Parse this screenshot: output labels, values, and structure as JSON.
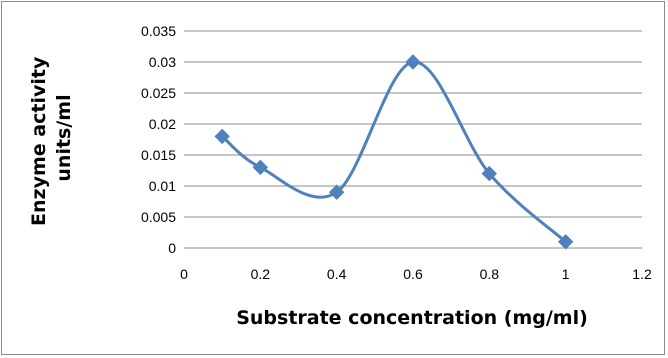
{
  "chart_data": {
    "type": "line",
    "smoothed": true,
    "marker": "diamond",
    "xlabel": "Substrate concentration (mg/ml)",
    "ylabel_lines": [
      "Enzyme activity",
      "units/ml"
    ],
    "xlim": [
      0,
      1.2
    ],
    "ylim": [
      0,
      0.035
    ],
    "xticks": [
      "0",
      "0.2",
      "0.4",
      "0.6",
      "0.8",
      "1",
      "1.2"
    ],
    "yticks": [
      "0",
      "0.005",
      "0.01",
      "0.015",
      "0.02",
      "0.025",
      "0.03",
      "0.035"
    ],
    "grid": "horizontal",
    "legend": "none",
    "series": [
      {
        "color": "#4f81bd",
        "x": [
          0.1,
          0.2,
          0.4,
          0.6,
          0.8,
          1.0
        ],
        "y": [
          0.018,
          0.013,
          0.009,
          0.03,
          0.012,
          0.001
        ]
      }
    ]
  }
}
